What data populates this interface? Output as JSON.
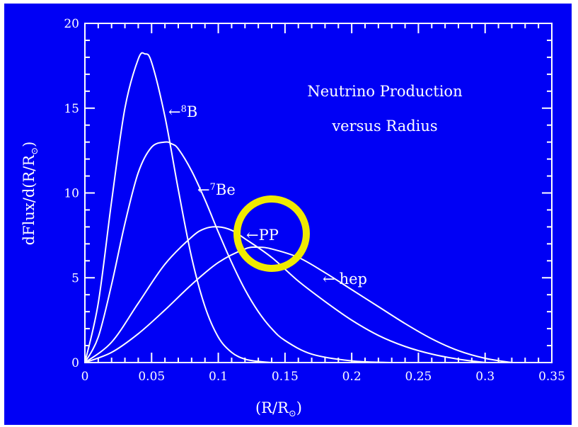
{
  "chart_data": {
    "type": "line",
    "title_lines": [
      "Neutrino Production",
      "versus Radius"
    ],
    "xlabel_main": "(R/R",
    "xlabel_sub": "⊙",
    "xlabel_close": ")",
    "ylabel_main": "dFlux/d(R/R",
    "ylabel_sub": "⊙",
    "ylabel_close": ")",
    "xlim": [
      0,
      0.35
    ],
    "ylim": [
      0,
      20
    ],
    "xticks": [
      0,
      0.05,
      0.1,
      0.15,
      0.2,
      0.25,
      0.3,
      0.35
    ],
    "xtick_labels": [
      "0",
      "0.05",
      "0.1",
      "0.15",
      "0.2",
      "0.25",
      "0.3",
      "0.35"
    ],
    "yticks": [
      0,
      5,
      10,
      15,
      20
    ],
    "ytick_labels": [
      "0",
      "5",
      "10",
      "15",
      "20"
    ],
    "series": [
      {
        "name": "8B",
        "label_arrow": "←",
        "label_sup": "8",
        "label_text": "B",
        "x": [
          0,
          0.01,
          0.02,
          0.03,
          0.04,
          0.045,
          0.05,
          0.06,
          0.07,
          0.08,
          0.09,
          0.1,
          0.11,
          0.12,
          0.13,
          0.14
        ],
        "y": [
          0,
          3.5,
          9.5,
          15.0,
          17.9,
          18.2,
          17.7,
          14.5,
          10.2,
          6.2,
          3.3,
          1.5,
          0.6,
          0.2,
          0.07,
          0
        ]
      },
      {
        "name": "7Be",
        "label_arrow": "←",
        "label_sup": "7",
        "label_text": "Be",
        "x": [
          0,
          0.01,
          0.02,
          0.03,
          0.04,
          0.05,
          0.06,
          0.065,
          0.07,
          0.08,
          0.09,
          0.1,
          0.11,
          0.12,
          0.13,
          0.14,
          0.15,
          0.17,
          0.2,
          0.23
        ],
        "y": [
          0,
          1.5,
          4.6,
          8.2,
          11.2,
          12.7,
          13.0,
          12.9,
          12.6,
          11.3,
          9.6,
          7.7,
          5.9,
          4.3,
          3.0,
          2.0,
          1.3,
          0.5,
          0.1,
          0
        ]
      },
      {
        "name": "pp",
        "label_arrow": "←",
        "label_sup": "",
        "label_text": "PP",
        "x": [
          0,
          0.02,
          0.04,
          0.06,
          0.08,
          0.09,
          0.1,
          0.11,
          0.12,
          0.14,
          0.16,
          0.18,
          0.2,
          0.22,
          0.24,
          0.26,
          0.28,
          0.3
        ],
        "y": [
          0,
          1.2,
          3.5,
          5.8,
          7.4,
          7.9,
          8.0,
          7.8,
          7.3,
          6.2,
          4.8,
          3.6,
          2.5,
          1.6,
          0.95,
          0.5,
          0.2,
          0
        ]
      },
      {
        "name": "hep",
        "label_arrow": "←",
        "label_sup": "",
        "label_text": "hep",
        "x": [
          0,
          0.02,
          0.04,
          0.06,
          0.08,
          0.1,
          0.12,
          0.13,
          0.14,
          0.16,
          0.18,
          0.2,
          0.22,
          0.24,
          0.26,
          0.28,
          0.3,
          0.32
        ],
        "y": [
          0,
          0.6,
          1.7,
          3.1,
          4.6,
          5.9,
          6.7,
          6.8,
          6.7,
          6.2,
          5.3,
          4.3,
          3.3,
          2.3,
          1.4,
          0.7,
          0.25,
          0
        ]
      }
    ],
    "highlight": {
      "shape": "circle",
      "color": "#f0ea00",
      "center": [
        0.14,
        7.6
      ]
    },
    "colors": {
      "background": "#0000f5",
      "foreground": "#ffffff"
    }
  }
}
